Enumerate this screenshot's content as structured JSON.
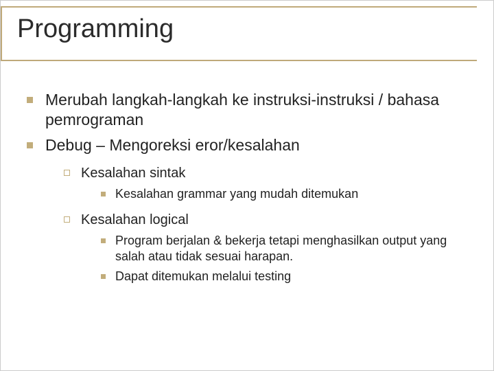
{
  "colors": {
    "accent": "#c2ad7b",
    "text": "#222222",
    "bg": "#ffffff"
  },
  "title": "Programming",
  "bullets": {
    "b1": "Merubah langkah-langkah ke instruksi-instruksi / bahasa pemrograman",
    "b2": "Debug – Mengoreksi eror/kesalahan",
    "b2_1": "Kesalahan sintak",
    "b2_1_1": "Kesalahan grammar yang mudah ditemukan",
    "b2_2": "Kesalahan logical",
    "b2_2_1": "Program berjalan & bekerja tetapi menghasilkan output yang salah atau tidak sesuai harapan.",
    "b2_2_2": "Dapat ditemukan melalui testing"
  }
}
